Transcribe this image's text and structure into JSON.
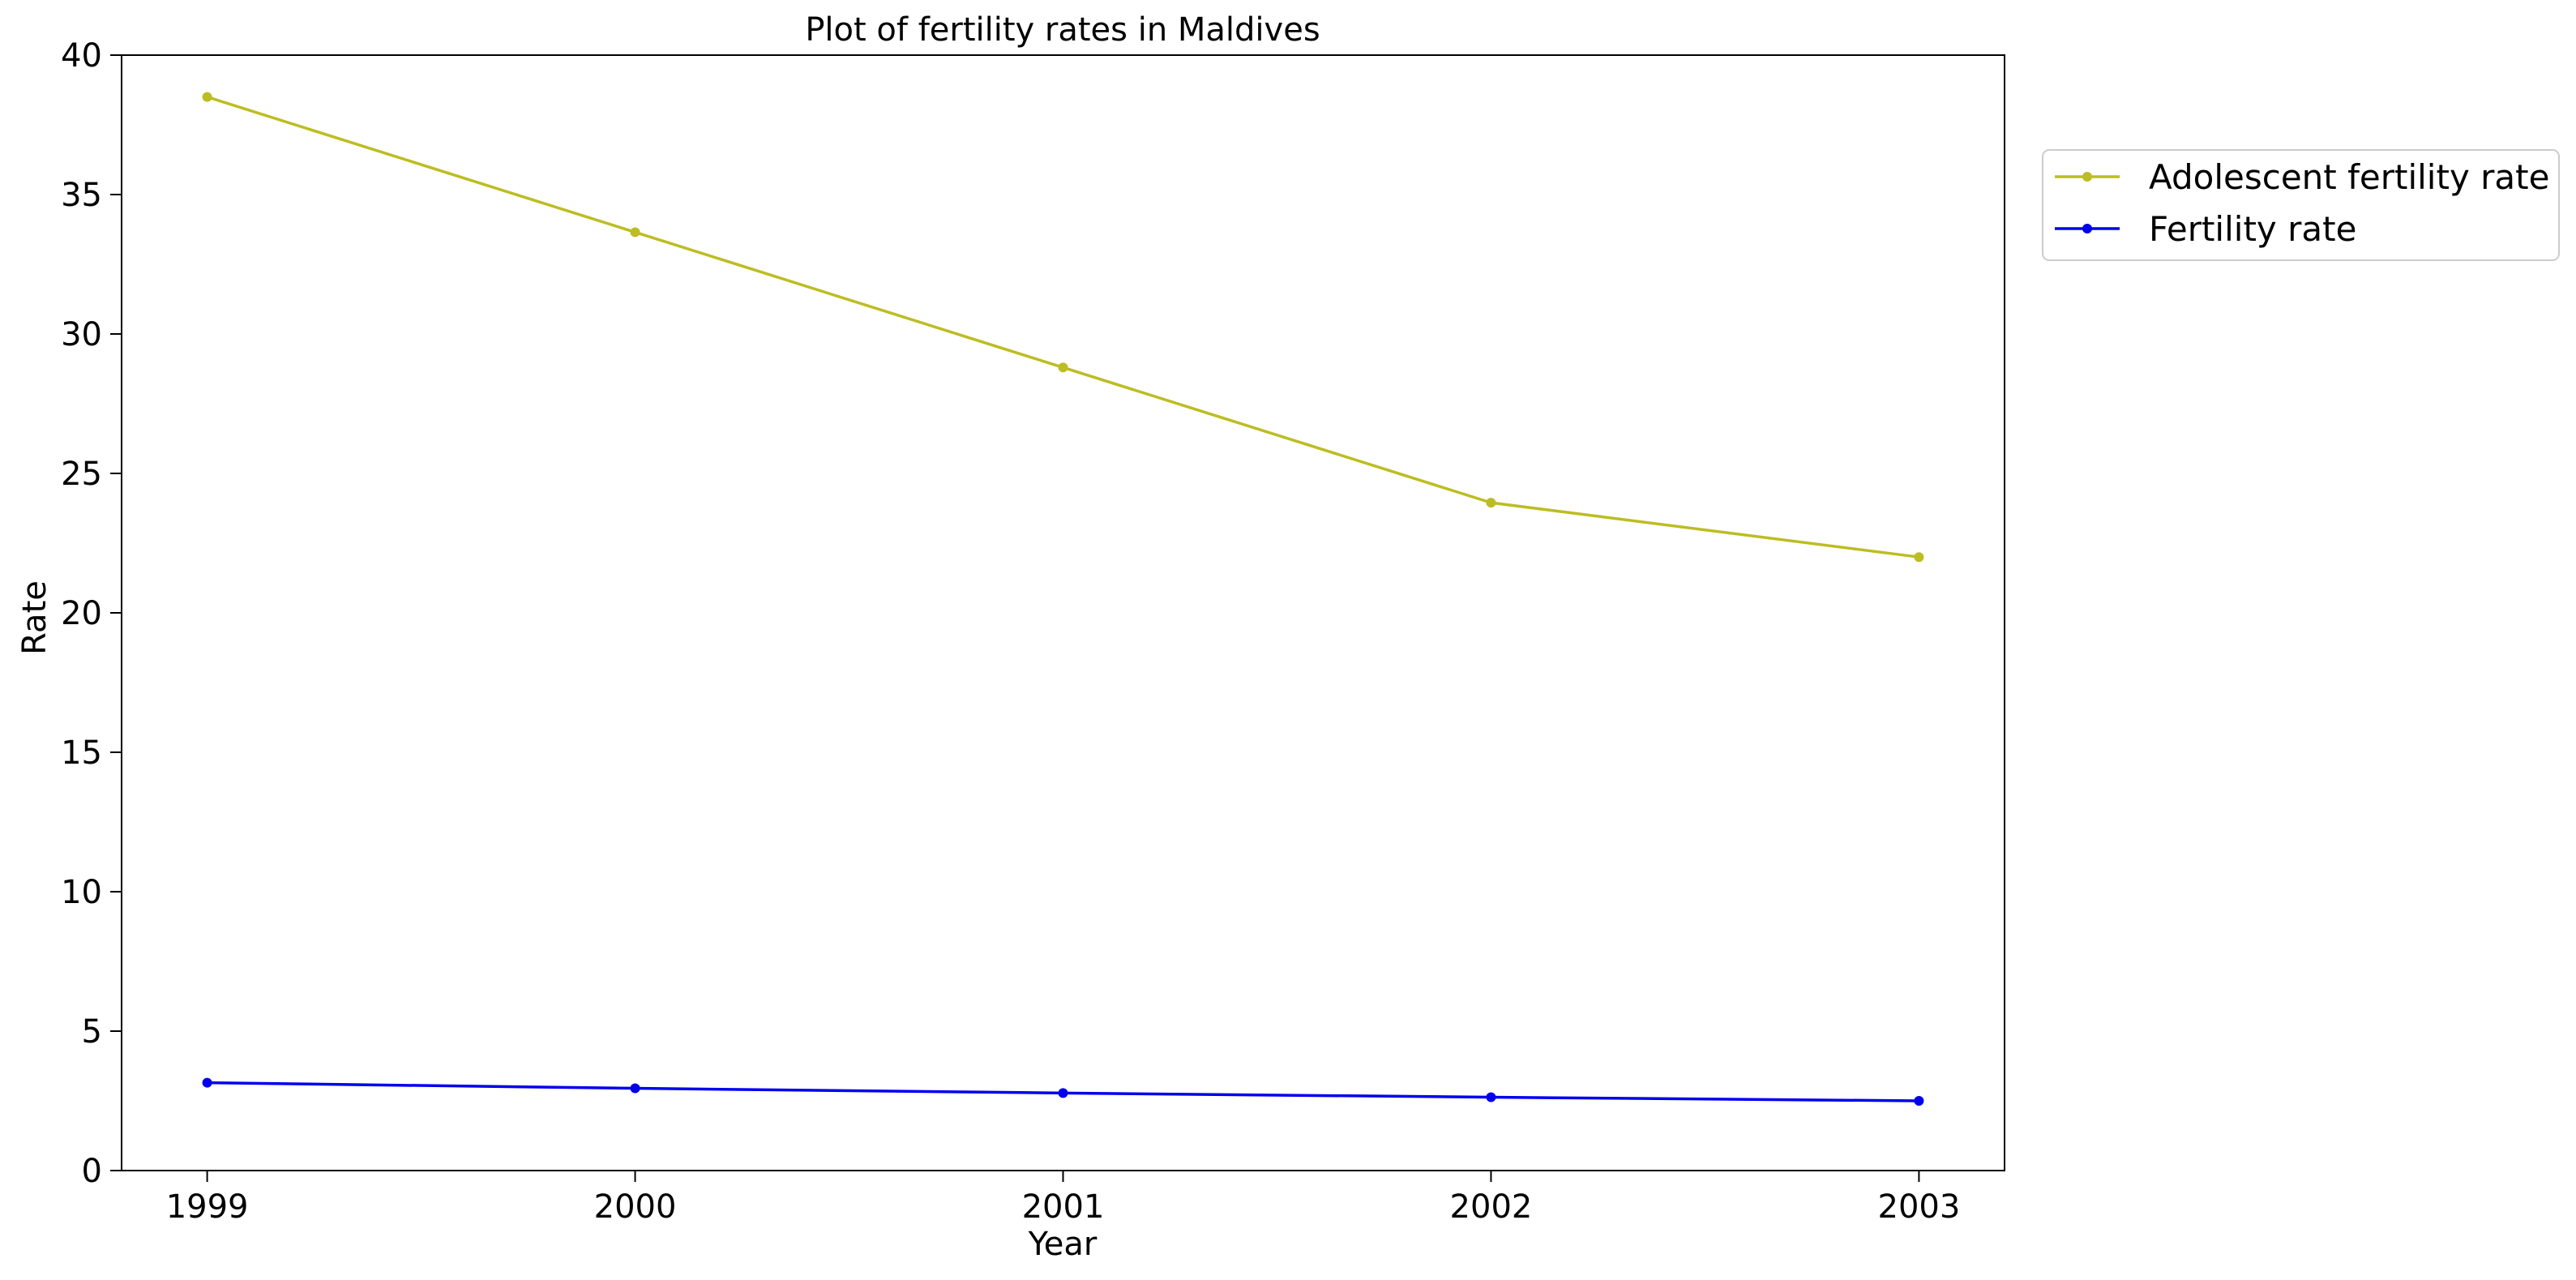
{
  "chart_data": {
    "type": "line",
    "title": "Plot of fertility rates in Maldives",
    "xlabel": "Year",
    "ylabel": "Rate",
    "x": [
      1999,
      2000,
      2001,
      2002,
      2003
    ],
    "xlim": [
      1998.8,
      2003.2
    ],
    "ylim": [
      0,
      40
    ],
    "yticks": [
      0,
      5,
      10,
      15,
      20,
      25,
      30,
      35,
      40
    ],
    "grid": false,
    "legend_position": "outside-upper-right",
    "series": [
      {
        "name": "Adolescent fertility rate",
        "color": "#bcbd22",
        "marker": "dot",
        "values": [
          38.5,
          33.65,
          28.8,
          23.95,
          22.0
        ]
      },
      {
        "name": "Fertility rate",
        "color": "#0000ee",
        "marker": "dot",
        "values": [
          3.15,
          2.95,
          2.78,
          2.63,
          2.5
        ]
      }
    ]
  }
}
